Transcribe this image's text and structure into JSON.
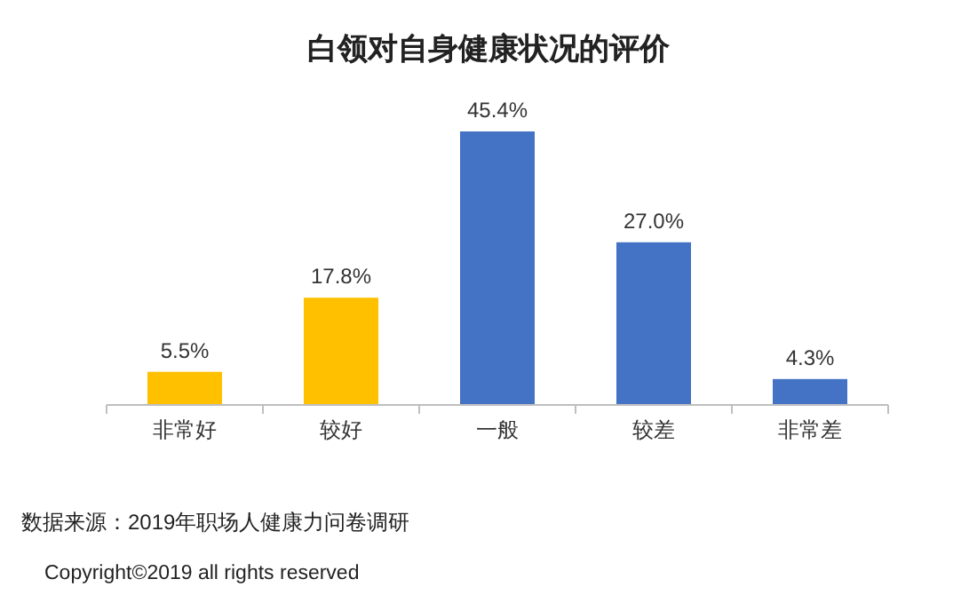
{
  "chart_data": {
    "type": "bar",
    "title": "白领对自身健康状况的评价",
    "categories": [
      "非常好",
      "较好",
      "一般",
      "较差",
      "非常差"
    ],
    "values": [
      5.5,
      17.8,
      45.4,
      27.0,
      4.3
    ],
    "value_labels": [
      "5.5%",
      "17.8%",
      "45.4%",
      "27.0%",
      "4.3%"
    ],
    "colors": [
      "#ffc000",
      "#ffc000",
      "#4472c4",
      "#4472c4",
      "#4472c4"
    ],
    "annotations": [
      "数据来源：2019年职场人健康力问卷调研",
      "Copyright©2019 all rights reserved"
    ]
  }
}
